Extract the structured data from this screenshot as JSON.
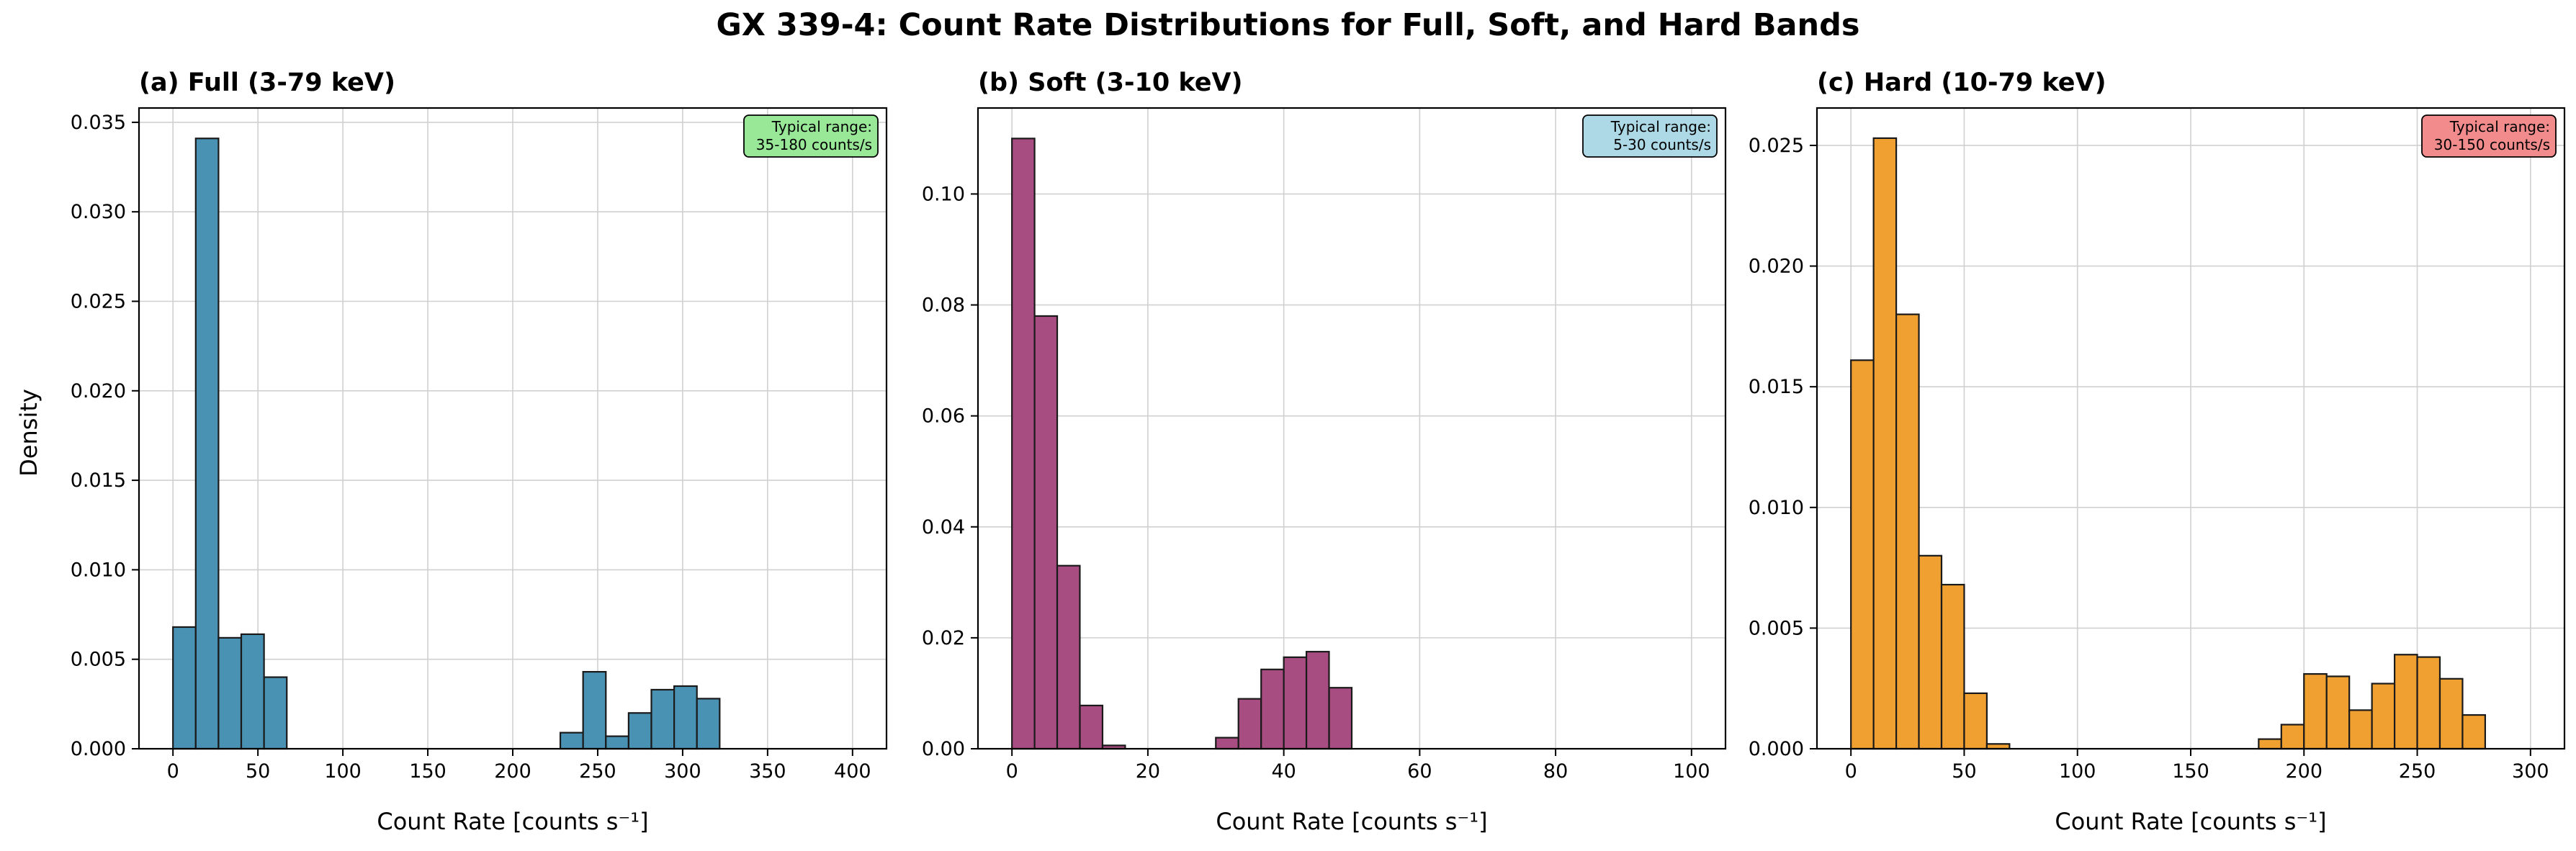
{
  "suptitle": "GX 339-4: Count Rate Distributions for Full, Soft, and Hard Bands",
  "ylabel": "Density",
  "chart_data": [
    {
      "type": "bar",
      "title": "(a) Full (3-79 keV)",
      "xlabel": "Count Rate [counts s⁻¹]",
      "ylabel": "Density",
      "xlim": [
        -20,
        420
      ],
      "ylim": [
        0,
        0.0358
      ],
      "xticks": [
        0,
        50,
        100,
        150,
        200,
        250,
        300,
        350,
        400
      ],
      "yticks": [
        0.0,
        0.005,
        0.01,
        0.015,
        0.02,
        0.025,
        0.03,
        0.035
      ],
      "ytick_labels": [
        "0.000",
        "0.005",
        "0.010",
        "0.015",
        "0.020",
        "0.025",
        "0.030",
        "0.035"
      ],
      "grid": true,
      "color": "#4a92b4",
      "bin_width": 13.4,
      "bin_starts": [
        0,
        13.4,
        26.8,
        40.2,
        53.6,
        228,
        241.4,
        254.8,
        268.2,
        281.6,
        295,
        308.4
      ],
      "values": [
        0.0068,
        0.0341,
        0.0062,
        0.0064,
        0.004,
        0.0009,
        0.0043,
        0.0007,
        0.002,
        0.0033,
        0.0035,
        0.0028
      ],
      "annotation": [
        "Typical range:",
        "35-180 counts/s"
      ],
      "annotation_color": "#98e898"
    },
    {
      "type": "bar",
      "title": "(b) Soft (3-10 keV)",
      "xlabel": "Count Rate [counts s⁻¹]",
      "ylabel": "",
      "xlim": [
        -5,
        105
      ],
      "ylim": [
        0,
        0.1155
      ],
      "xticks": [
        0,
        20,
        40,
        60,
        80,
        100
      ],
      "yticks": [
        0.0,
        0.02,
        0.04,
        0.06,
        0.08,
        0.1
      ],
      "ytick_labels": [
        "0.00",
        "0.02",
        "0.04",
        "0.06",
        "0.08",
        "0.10"
      ],
      "grid": true,
      "color": "#a84d81",
      "bin_width": 3.33,
      "bin_starts": [
        0,
        3.33,
        6.66,
        10,
        13.33,
        30,
        33.33,
        36.67,
        40,
        43.33,
        46.67
      ],
      "values": [
        0.11,
        0.078,
        0.033,
        0.0078,
        0.0006,
        0.002,
        0.009,
        0.0143,
        0.0165,
        0.0175,
        0.011
      ],
      "annotation": [
        "Typical range:",
        "5-30 counts/s"
      ],
      "annotation_color": "#add8e6"
    },
    {
      "type": "bar",
      "title": "(c) Hard (10-79 keV)",
      "xlabel": "Count Rate [counts s⁻¹]",
      "ylabel": "",
      "xlim": [
        -15,
        315
      ],
      "ylim": [
        0,
        0.02655
      ],
      "xticks": [
        0,
        50,
        100,
        150,
        200,
        250,
        300
      ],
      "yticks": [
        0.0,
        0.005,
        0.01,
        0.015,
        0.02,
        0.025
      ],
      "ytick_labels": [
        "0.000",
        "0.005",
        "0.010",
        "0.015",
        "0.020",
        "0.025"
      ],
      "grid": true,
      "color": "#f0a030",
      "bin_width": 10,
      "bin_starts": [
        0,
        10,
        20,
        30,
        40,
        50,
        60,
        180,
        190,
        200,
        210,
        220,
        230,
        240,
        250,
        260,
        270
      ],
      "values": [
        0.0161,
        0.0253,
        0.018,
        0.008,
        0.0068,
        0.0023,
        0.0002,
        0.0004,
        0.001,
        0.0031,
        0.003,
        0.0016,
        0.0027,
        0.0039,
        0.0038,
        0.0029,
        0.0014
      ],
      "annotation": [
        "Typical range:",
        "30-150 counts/s"
      ],
      "annotation_color": "#f28c8c"
    }
  ]
}
